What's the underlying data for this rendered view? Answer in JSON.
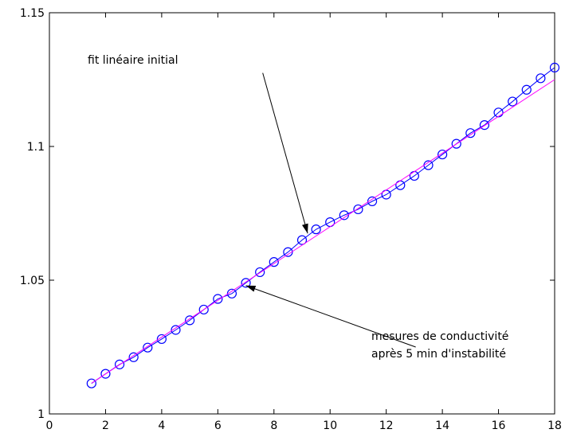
{
  "chart_data": {
    "type": "line",
    "title": "",
    "xlabel": "",
    "ylabel": "",
    "xlim": [
      0,
      18
    ],
    "ylim": [
      1,
      1.15
    ],
    "xticks": [
      0,
      2,
      4,
      6,
      8,
      10,
      12,
      14,
      16,
      18
    ],
    "yticks": [
      1,
      1.05,
      1.1,
      1.15
    ],
    "xtick_labels": [
      "0",
      "2",
      "4",
      "6",
      "8",
      "10",
      "12",
      "14",
      "16",
      "18"
    ],
    "ytick_labels": [
      "1",
      "1.05",
      "1.1",
      "1.15"
    ],
    "grid": false,
    "series": [
      {
        "color": "#0000ff",
        "marker": "circle",
        "points": [
          [
            1.5,
            1.0114
          ],
          [
            2.0,
            1.015
          ],
          [
            2.5,
            1.0185
          ],
          [
            3.0,
            1.0212
          ],
          [
            3.5,
            1.0248
          ],
          [
            4.0,
            1.028
          ],
          [
            4.5,
            1.0314
          ],
          [
            5.0,
            1.035
          ],
          [
            5.5,
            1.039
          ],
          [
            6.0,
            1.043
          ],
          [
            6.5,
            1.045
          ],
          [
            7.0,
            1.049
          ],
          [
            7.5,
            1.053
          ],
          [
            8.0,
            1.0568
          ],
          [
            8.5,
            1.0605
          ],
          [
            9.0,
            1.065
          ],
          [
            9.5,
            1.069
          ],
          [
            10.0,
            1.0717
          ],
          [
            10.5,
            1.0743
          ],
          [
            11.0,
            1.0765
          ],
          [
            11.5,
            1.0795
          ],
          [
            12.0,
            1.082
          ],
          [
            12.5,
            1.0855
          ],
          [
            13.0,
            1.089
          ],
          [
            13.5,
            1.093
          ],
          [
            14.0,
            1.097
          ],
          [
            14.5,
            1.101
          ],
          [
            15.0,
            1.105
          ],
          [
            15.5,
            1.108
          ],
          [
            16.0,
            1.1127
          ],
          [
            16.5,
            1.1168
          ],
          [
            17.0,
            1.1212
          ],
          [
            17.5,
            1.1255
          ],
          [
            18.0,
            1.1295
          ]
        ]
      },
      {
        "color": "#ff00ff",
        "marker": "none",
        "points": [
          [
            1.5,
            1.0115
          ],
          [
            18.0,
            1.125
          ]
        ]
      }
    ],
    "annotations": [
      {
        "lines": [
          "fit linéaire initial"
        ],
        "target": [
          9.2,
          1.0675
        ],
        "tail": [
          7.6,
          1.1275
        ]
      },
      {
        "lines": [
          "mesures de conductivité",
          "après 5 min d'instabilité"
        ],
        "target": [
          7.0,
          1.048
        ],
        "tail": [
          13.05,
          1.025
        ]
      }
    ],
    "colors": {
      "axis": "#000000",
      "data_series": "#0000ff",
      "fit_line": "#ff00ff",
      "arrow": "#000000"
    }
  }
}
